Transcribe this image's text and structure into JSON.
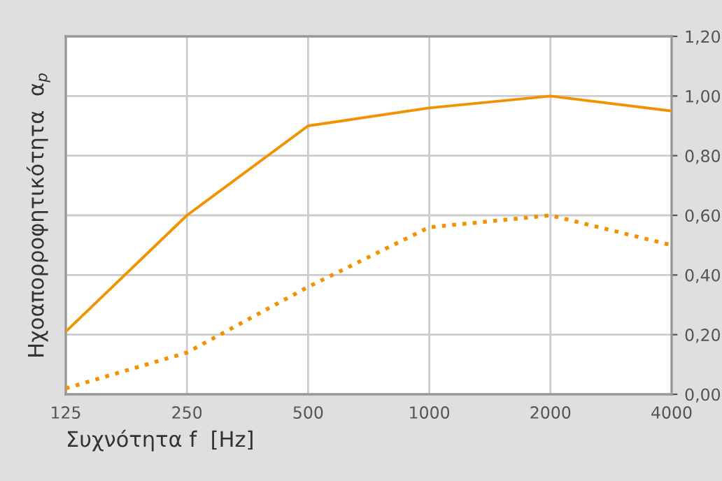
{
  "chart_data": {
    "type": "line",
    "xlabel": "Συχνότητα f  [Hz]",
    "ylabel": "Ηχοαπορροφητικότητα  α$_{p}$",
    "x": [
      125,
      250,
      500,
      1000,
      2000,
      4000
    ],
    "series": [
      {
        "color": "#f39200",
        "line_style": "solid",
        "values": [
          0.21,
          0.6,
          0.9,
          0.96,
          1.0,
          0.95
        ]
      },
      {
        "color": "#f39200",
        "line_style": "dotted",
        "values": [
          0.02,
          0.14,
          0.36,
          0.56,
          0.6,
          0.5
        ]
      }
    ],
    "xlim": [
      125,
      4000
    ],
    "xticks": [
      125,
      250,
      500,
      1000,
      2000,
      4000
    ],
    "ylim": [
      0,
      1.2
    ],
    "yticks": [
      {
        "value": 0,
        "label": "0,00"
      },
      {
        "value": 0.2,
        "label": "0,20"
      },
      {
        "value": 0.4,
        "label": "0,40"
      },
      {
        "value": 0.6,
        "label": "0,60"
      },
      {
        "value": 0.8,
        "label": "0,80"
      },
      {
        "value": 1.0,
        "label": "1,00"
      },
      {
        "value": 1.2,
        "label": "1,20"
      }
    ],
    "log": "x",
    "grid": true,
    "marker": "none"
  }
}
